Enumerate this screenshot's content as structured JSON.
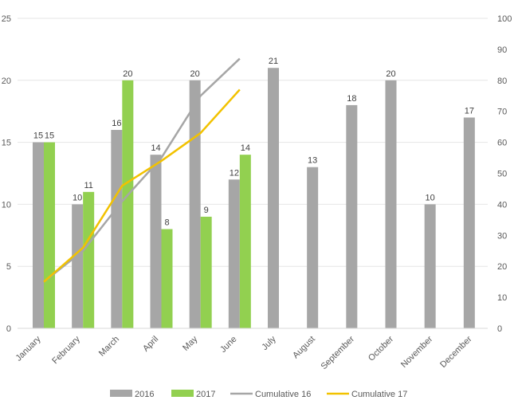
{
  "chart_data": {
    "type": "bar",
    "title": "",
    "xlabel": "",
    "ylabel": "",
    "categories": [
      "January",
      "February",
      "March",
      "April",
      "May",
      "June",
      "July",
      "August",
      "September",
      "October",
      "November",
      "December"
    ],
    "ylim": [
      0,
      25
    ],
    "y_ticks": [
      0,
      5,
      10,
      15,
      20,
      25
    ],
    "y2lim": [
      0,
      100
    ],
    "y2_ticks": [
      0,
      10,
      20,
      30,
      40,
      50,
      60,
      70,
      80,
      90,
      100
    ],
    "grid": true,
    "legend_position": "bottom",
    "series": [
      {
        "name": "2016",
        "kind": "bar",
        "axis": "left",
        "color": "#a6a6a6",
        "values": [
          15,
          10,
          16,
          14,
          20,
          12,
          21,
          13,
          18,
          20,
          10,
          17
        ]
      },
      {
        "name": "2017",
        "kind": "bar",
        "axis": "left",
        "color": "#92d050",
        "values": [
          15,
          11,
          20,
          8,
          9,
          14,
          null,
          null,
          null,
          null,
          null,
          null
        ]
      },
      {
        "name": "Cumulative 16",
        "kind": "line",
        "axis": "right",
        "color": "#a6a6a6",
        "values": [
          15,
          25,
          41,
          55,
          75,
          87,
          null,
          null,
          null,
          null,
          null,
          null
        ]
      },
      {
        "name": "Cumulative 17",
        "kind": "line",
        "axis": "right",
        "color": "#f2c200",
        "values": [
          15,
          26,
          46,
          54,
          63,
          77,
          null,
          null,
          null,
          null,
          null,
          null
        ]
      }
    ]
  }
}
